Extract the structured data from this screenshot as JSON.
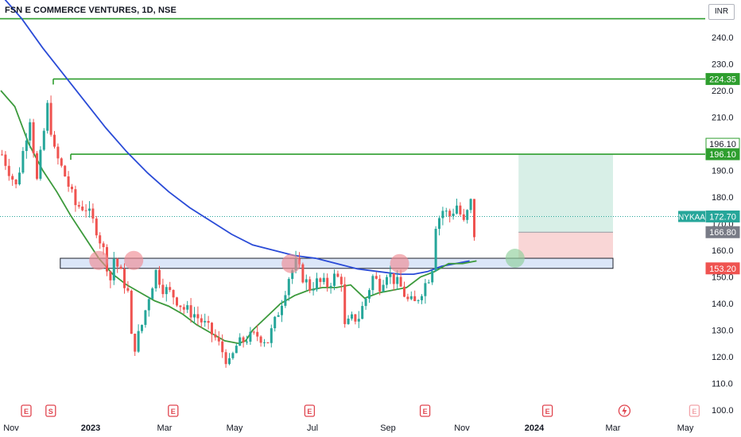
{
  "header": {
    "symbol_title": "FSN E COMMERCE VENTURES, 1D, NSE",
    "currency_button": "INR"
  },
  "chart_data": {
    "type": "candlestick",
    "title": "FSN E COMMERCE VENTURES, 1D, NSE",
    "ylim": [
      98,
      252
    ],
    "y_ticks": [
      100,
      110,
      120,
      130,
      140,
      150,
      160,
      170,
      180,
      190,
      200,
      210,
      220,
      230,
      240
    ],
    "x_labels": [
      "Nov",
      "2023",
      "Mar",
      "May",
      "Jul",
      "Sep",
      "Nov",
      "2024",
      "Mar",
      "May"
    ],
    "bold_x_labels": [
      "2023",
      "2024"
    ],
    "colors": {
      "up": "#26a69a",
      "down": "#ef5350",
      "sma_short": "#3c9a3c",
      "sma_long": "#2a4bd7",
      "level": "#2e9e2e",
      "zone_fill": "#dbe6f8",
      "target_fill": "#d8efe7",
      "stop_fill": "#f9d6d6"
    },
    "price_series_approx": [
      [
        0,
        196
      ],
      [
        4,
        184
      ],
      [
        8,
        210
      ],
      [
        10,
        186
      ],
      [
        13,
        214
      ],
      [
        15,
        197
      ],
      [
        18,
        188
      ],
      [
        21,
        177
      ],
      [
        24,
        176
      ],
      [
        27,
        168
      ],
      [
        29,
        160
      ],
      [
        31,
        149
      ],
      [
        32,
        157
      ],
      [
        34,
        151
      ],
      [
        36,
        144
      ],
      [
        37,
        127
      ],
      [
        38,
        124
      ],
      [
        40,
        132
      ],
      [
        42,
        143
      ],
      [
        44,
        152
      ],
      [
        46,
        146
      ],
      [
        49,
        143
      ],
      [
        52,
        138
      ],
      [
        55,
        136
      ],
      [
        58,
        132
      ],
      [
        61,
        127
      ],
      [
        63,
        122
      ],
      [
        65,
        117
      ],
      [
        67,
        124
      ],
      [
        70,
        127
      ],
      [
        73,
        128
      ],
      [
        76,
        126
      ],
      [
        78,
        133
      ],
      [
        80,
        141
      ],
      [
        82,
        150
      ],
      [
        84,
        155
      ],
      [
        86,
        150
      ],
      [
        88,
        146
      ],
      [
        90,
        148
      ],
      [
        93,
        147
      ],
      [
        95,
        150
      ],
      [
        97,
        149
      ],
      [
        98,
        131
      ],
      [
        100,
        134
      ],
      [
        102,
        135
      ],
      [
        104,
        142
      ],
      [
        106,
        150
      ],
      [
        108,
        147
      ],
      [
        110,
        152
      ],
      [
        112,
        149
      ],
      [
        114,
        146
      ],
      [
        116,
        141
      ],
      [
        118,
        140
      ],
      [
        120,
        145
      ],
      [
        122,
        150
      ],
      [
        123,
        154
      ],
      [
        124,
        170
      ],
      [
        126,
        175
      ],
      [
        128,
        173
      ],
      [
        130,
        177
      ],
      [
        132,
        170
      ],
      [
        134,
        178
      ],
      [
        135,
        166
      ],
      [
        136,
        163
      ]
    ],
    "sma_short_approx": [
      [
        0,
        220
      ],
      [
        4,
        214
      ],
      [
        8,
        200
      ],
      [
        12,
        190
      ],
      [
        16,
        182
      ],
      [
        20,
        173
      ],
      [
        24,
        165
      ],
      [
        28,
        157
      ],
      [
        32,
        151
      ],
      [
        36,
        147
      ],
      [
        40,
        144
      ],
      [
        44,
        141
      ],
      [
        48,
        139
      ],
      [
        52,
        136
      ],
      [
        56,
        132
      ],
      [
        60,
        129
      ],
      [
        64,
        126
      ],
      [
        68,
        125
      ],
      [
        70,
        126
      ],
      [
        72,
        130
      ],
      [
        76,
        135
      ],
      [
        80,
        140
      ],
      [
        84,
        143
      ],
      [
        88,
        145
      ],
      [
        92,
        146
      ],
      [
        96,
        146
      ],
      [
        100,
        147
      ],
      [
        104,
        142
      ],
      [
        108,
        144
      ],
      [
        112,
        145
      ],
      [
        116,
        146
      ],
      [
        120,
        150
      ],
      [
        124,
        152
      ],
      [
        128,
        155
      ],
      [
        132,
        155
      ],
      [
        136,
        156
      ]
    ],
    "sma_long_approx": [
      [
        0,
        256
      ],
      [
        6,
        247
      ],
      [
        12,
        236
      ],
      [
        18,
        226
      ],
      [
        24,
        216
      ],
      [
        30,
        206
      ],
      [
        36,
        197
      ],
      [
        42,
        189
      ],
      [
        48,
        182
      ],
      [
        54,
        176
      ],
      [
        60,
        171
      ],
      [
        66,
        166
      ],
      [
        72,
        162
      ],
      [
        78,
        160
      ],
      [
        84,
        158
      ],
      [
        90,
        157
      ],
      [
        96,
        155
      ],
      [
        102,
        153
      ],
      [
        108,
        152
      ],
      [
        114,
        151
      ],
      [
        118,
        151
      ],
      [
        122,
        152
      ],
      [
        126,
        154
      ],
      [
        130,
        155
      ],
      [
        134,
        156
      ]
    ],
    "horizontal_levels": [
      {
        "value": 247.0,
        "label": "",
        "from_x": 0
      },
      {
        "value": 224.35,
        "label": "224.35",
        "from_x": 15
      },
      {
        "value": 196.1,
        "label": "196.10",
        "from_x": 20
      }
    ],
    "support_zone": {
      "low": 153.2,
      "high": 157.0,
      "from_x": 17,
      "to_x": 175
    },
    "touch_markers": [
      {
        "x": 28,
        "y": 156.2,
        "color": "#f08c93"
      },
      {
        "x": 38,
        "y": 156.2,
        "color": "#f08c93"
      },
      {
        "x": 83,
        "y": 155.0,
        "color": "#f08c93"
      },
      {
        "x": 114,
        "y": 155.0,
        "color": "#f08c93"
      },
      {
        "x": 147,
        "y": 157.0,
        "color": "#8fcf9b"
      }
    ],
    "position_tool": {
      "entry": 166.8,
      "target": 196.1,
      "stop": 153.2,
      "from_x": 148,
      "to_x": 175
    },
    "price_tags": [
      {
        "value": 196.1,
        "text": "196.10",
        "style": "outline-green"
      },
      {
        "value": 196.1,
        "text": "196.10",
        "style": "green"
      },
      {
        "value": 224.35,
        "text": "224.35",
        "style": "green"
      },
      {
        "value": 172.7,
        "text": "172.70",
        "style": "teal",
        "symbol": "NYKAA"
      },
      {
        "value": 166.8,
        "text": "166.80",
        "style": "gray"
      },
      {
        "value": 153.2,
        "text": "153.20",
        "style": "red"
      }
    ],
    "event_markers": [
      {
        "x": 5,
        "text": "E"
      },
      {
        "x": 12,
        "text": "S"
      },
      {
        "x": 47,
        "text": "E"
      },
      {
        "x": 86,
        "text": "E"
      },
      {
        "x": 119,
        "text": "E"
      },
      {
        "x": 154,
        "text": "E"
      },
      {
        "x": 176,
        "text": "⚡"
      },
      {
        "x": 196,
        "text": "E"
      }
    ],
    "current_value": 172.7,
    "symbol": "NYKAA"
  }
}
